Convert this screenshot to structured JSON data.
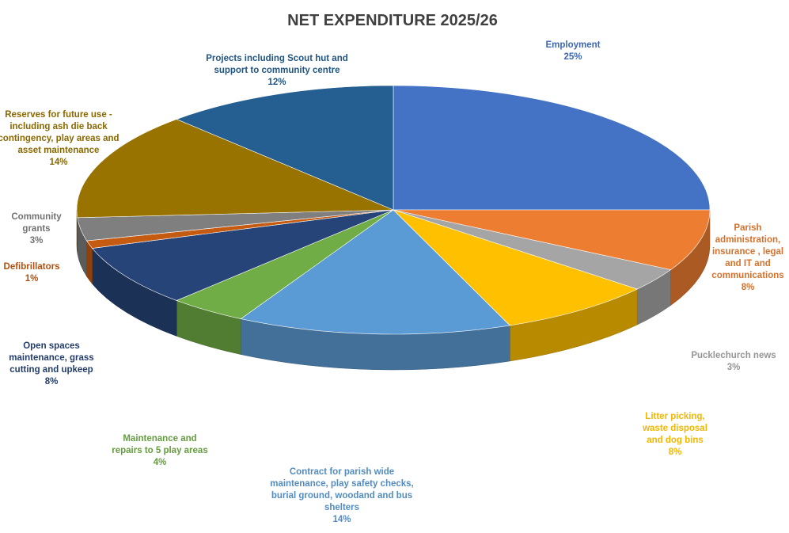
{
  "chart_data": {
    "type": "pie",
    "title": "NET EXPENDITURE 2025/26",
    "slices": [
      {
        "label": "Employment",
        "value": 25,
        "display": "25%",
        "color": "#4472C4"
      },
      {
        "label": "Parish administration, insurance , legal and IT and communications",
        "value": 8,
        "display": "8%",
        "color": "#ED7D31"
      },
      {
        "label": "Pucklechurch news",
        "value": 3,
        "display": "3%",
        "color": "#A5A5A5"
      },
      {
        "label": "Litter picking, waste disposal and dog bins",
        "value": 8,
        "display": "8%",
        "color": "#FFC000"
      },
      {
        "label": "Contract for parish wide maintenance, play safety checks, burial ground, woodand and bus shelters",
        "value": 14,
        "display": "14%",
        "color": "#5B9BD5"
      },
      {
        "label": "Maintenance and repairs to 5 play areas",
        "value": 4,
        "display": "4%",
        "color": "#70AD47"
      },
      {
        "label": "Open spaces maintenance, grass cutting and upkeep",
        "value": 8,
        "display": "8%",
        "color": "#264478"
      },
      {
        "label": "Defibrillators",
        "value": 1,
        "display": "1%",
        "color": "#C55A11"
      },
      {
        "label": "Community grants",
        "value": 3,
        "display": "3%",
        "color": "#7F7F7F"
      },
      {
        "label": "Reserves for future use - including ash die back contingency, play areas and asset maintenance",
        "value": 14,
        "display": "14%",
        "color": "#997300"
      },
      {
        "label": "Projects including Scout hut and support to community centre",
        "value": 12,
        "display": "12%",
        "color": "#255E91"
      }
    ],
    "legend": "none (data labels on slices)"
  }
}
